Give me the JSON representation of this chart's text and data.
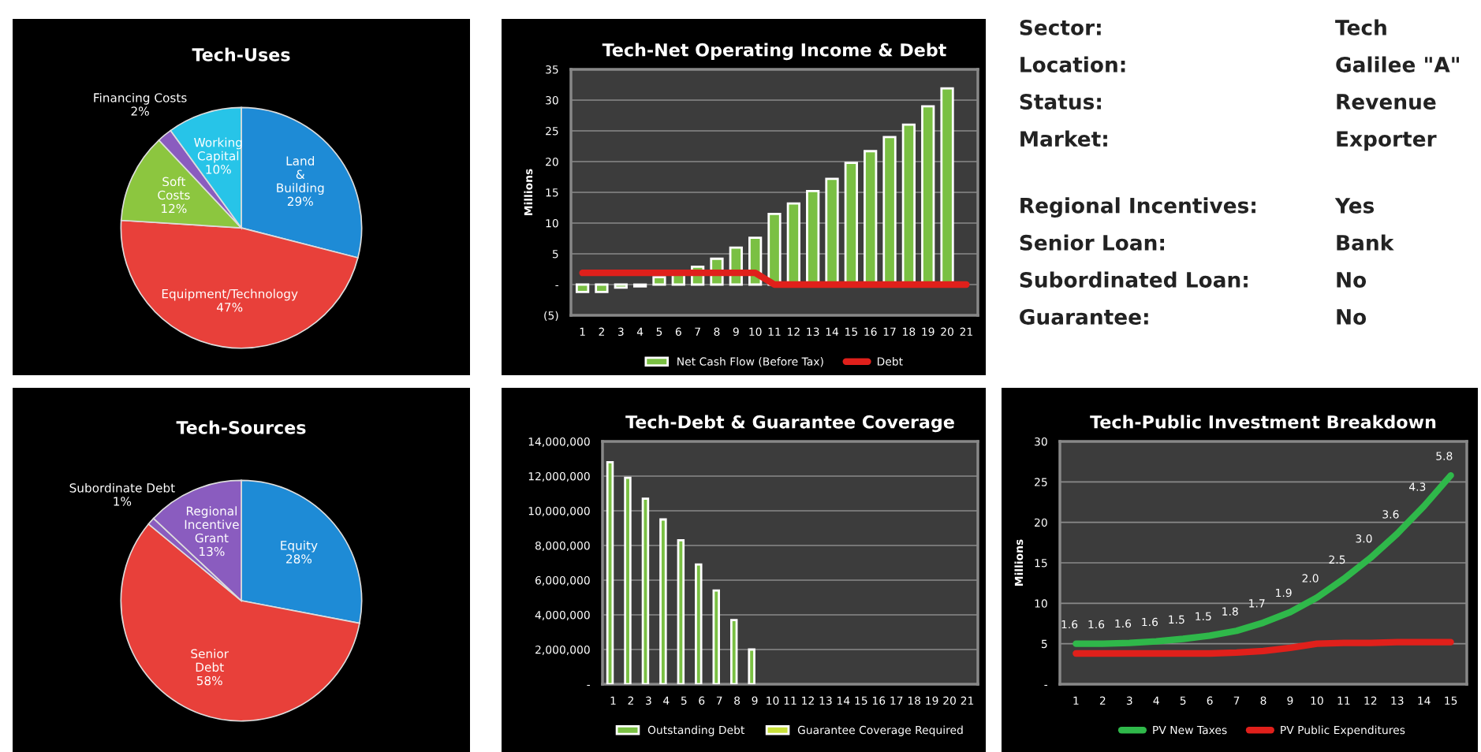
{
  "chart_data": [
    {
      "type": "pie",
      "title": "Tech-Uses",
      "categories": [
        "Land & Building",
        "Equipment/Technology",
        "Soft Costs",
        "Financing Costs",
        "Working Capital"
      ],
      "values": [
        29,
        47,
        12,
        2,
        10
      ],
      "value_labels": [
        "29%",
        "47%",
        "12%",
        "2%",
        "10%"
      ],
      "colors": [
        "#1e8bd6",
        "#e8403a",
        "#8cc63f",
        "#8a5cbf",
        "#27c4e8"
      ]
    },
    {
      "type": "bar",
      "title": "Tech-Net Operating Income & Debt",
      "ylabel": "Millions",
      "categories": [
        "1",
        "2",
        "3",
        "4",
        "5",
        "6",
        "7",
        "8",
        "9",
        "10",
        "11",
        "12",
        "13",
        "14",
        "15",
        "16",
        "17",
        "18",
        "19",
        "20",
        "21"
      ],
      "series": [
        {
          "name": "Net Cash Flow (Before Tax)",
          "type": "bar",
          "color": "#7ac043",
          "values": [
            -1.2,
            -1.2,
            -0.5,
            -0.3,
            1.2,
            2.0,
            2.9,
            4.2,
            6.0,
            7.6,
            11.5,
            13.2,
            15.2,
            17.2,
            19.8,
            21.7,
            24.0,
            26.0,
            29.0,
            31.9,
            null
          ]
        },
        {
          "name": "Debt",
          "type": "line",
          "color": "#e0201b",
          "values": [
            1.9,
            1.9,
            1.9,
            1.9,
            1.9,
            1.9,
            1.9,
            1.9,
            1.9,
            1.9,
            0,
            0,
            0,
            0,
            0,
            0,
            0,
            0,
            0,
            0,
            0
          ]
        }
      ],
      "ylim": [
        -5,
        35
      ],
      "yticks": [
        {
          "value": -5,
          "label": "(5)"
        },
        {
          "value": 0,
          "label": "-"
        },
        5,
        10,
        15,
        20,
        25,
        30,
        35
      ],
      "grid": "y",
      "legend": "bottom"
    },
    {
      "type": "other",
      "annotations": [
        "Sector:",
        "Tech",
        "Location:",
        "Galilee \"A\"",
        "Status:",
        "Revenue",
        "Market:",
        "Exporter",
        "Regional Incentives:",
        "Yes",
        "Senior Loan:",
        "Bank",
        "Subordinated Loan:",
        "No",
        "Guarantee:",
        "No"
      ]
    },
    {
      "type": "pie",
      "title": "Tech-Sources",
      "categories": [
        "Equity",
        "Senior Debt",
        "Subordinate Debt",
        "Regional Incentive Grant"
      ],
      "values": [
        28,
        58,
        1,
        13
      ],
      "value_labels": [
        "28%",
        "58%",
        "1%",
        "13%"
      ],
      "colors": [
        "#1e8bd6",
        "#e8403a",
        "#8a5cbf",
        "#8a5cbf"
      ]
    },
    {
      "type": "bar",
      "title": "Tech-Debt & Guarantee Coverage",
      "categories": [
        "1",
        "2",
        "3",
        "4",
        "5",
        "6",
        "7",
        "8",
        "9",
        "10",
        "11",
        "12",
        "13",
        "14",
        "15",
        "16",
        "17",
        "18",
        "19",
        "20",
        "21"
      ],
      "series": [
        {
          "name": "Outstanding Debt",
          "color": "#7ac043",
          "values": [
            12800000,
            11900000,
            10700000,
            9500000,
            8300000,
            6900000,
            5400000,
            3700000,
            2000000,
            null,
            null,
            null,
            null,
            null,
            null,
            null,
            null,
            null,
            null,
            null,
            null
          ]
        },
        {
          "name": "Guarantee Coverage Required",
          "color": "#c8e03a",
          "values": [
            null,
            null,
            null,
            null,
            null,
            null,
            null,
            null,
            null,
            null,
            null,
            null,
            null,
            null,
            null,
            null,
            null,
            null,
            null,
            null,
            null
          ]
        }
      ],
      "ylim": [
        0,
        14000000
      ],
      "yticks": [
        {
          "value": 0,
          "label": "-"
        },
        {
          "value": 2000000,
          "label": "2,000,000"
        },
        {
          "value": 4000000,
          "label": "4,000,000"
        },
        {
          "value": 6000000,
          "label": "6,000,000"
        },
        {
          "value": 8000000,
          "label": "8,000,000"
        },
        {
          "value": 10000000,
          "label": "10,000,000"
        },
        {
          "value": 12000000,
          "label": "12,000,000"
        },
        {
          "value": 14000000,
          "label": "14,000,000"
        }
      ],
      "grid": "y",
      "legend": "bottom"
    },
    {
      "type": "line",
      "title": "Tech-Public Investment Breakdown",
      "ylabel": "Millions",
      "categories": [
        "1",
        "2",
        "3",
        "4",
        "5",
        "6",
        "7",
        "8",
        "9",
        "10",
        "11",
        "12",
        "13",
        "14",
        "15"
      ],
      "annotations": [
        {
          "text": "1.6",
          "x": "1",
          "y": 5.0
        },
        {
          "text": "1.6",
          "x": "2",
          "y": 5.0
        },
        {
          "text": "1.6",
          "x": "3",
          "y": 5.1
        },
        {
          "text": "1.6",
          "x": "4",
          "y": 5.3
        },
        {
          "text": "1.5",
          "x": "5",
          "y": 5.6
        },
        {
          "text": "1.5",
          "x": "6",
          "y": 6.0
        },
        {
          "text": "1.8",
          "x": "7",
          "y": 6.6
        },
        {
          "text": "1.7",
          "x": "8",
          "y": 7.6
        },
        {
          "text": "1.9",
          "x": "9",
          "y": 8.9
        },
        {
          "text": "2.0",
          "x": "10",
          "y": 10.7
        },
        {
          "text": "2.5",
          "x": "11",
          "y": 13.0
        },
        {
          "text": "3.0",
          "x": "12",
          "y": 15.6
        },
        {
          "text": "3.6",
          "x": "13",
          "y": 18.6
        },
        {
          "text": "4.3",
          "x": "14",
          "y": 22.0
        },
        {
          "text": "5.8",
          "x": "15",
          "y": 25.8
        }
      ],
      "series": [
        {
          "name": "PV New Taxes",
          "color": "#2fb84a",
          "values": [
            5.0,
            5.0,
            5.1,
            5.3,
            5.6,
            6.0,
            6.6,
            7.6,
            8.9,
            10.7,
            13.0,
            15.6,
            18.6,
            22.0,
            25.8
          ]
        },
        {
          "name": "PV Public Expenditures",
          "color": "#e0201b",
          "values": [
            3.8,
            3.8,
            3.8,
            3.8,
            3.8,
            3.8,
            3.9,
            4.1,
            4.5,
            5.0,
            5.1,
            5.1,
            5.2,
            5.2,
            5.2
          ]
        }
      ],
      "ylim": [
        0,
        30
      ],
      "yticks": [
        {
          "value": 0,
          "label": "-"
        },
        5,
        10,
        15,
        20,
        25,
        30
      ],
      "grid": "y",
      "legend": "bottom"
    }
  ]
}
